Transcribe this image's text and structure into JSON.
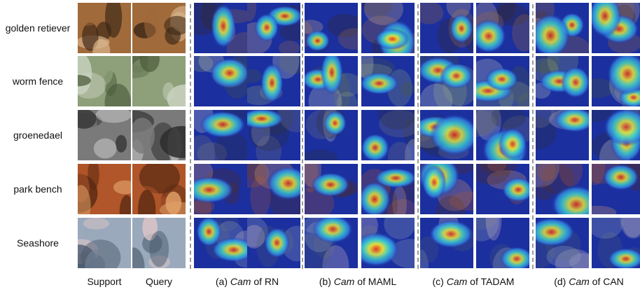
{
  "rows": [
    {
      "label": "golden retiever",
      "palette": [
        "#3b2616",
        "#a06a3a",
        "#d9b58c"
      ]
    },
    {
      "label": "worm fence",
      "palette": [
        "#4a5a3a",
        "#8da07a",
        "#c9d2c0"
      ]
    },
    {
      "label": "groenedael",
      "palette": [
        "#2e2e2e",
        "#7a7a7a",
        "#d0d0d0"
      ]
    },
    {
      "label": "park bench",
      "palette": [
        "#5a2a12",
        "#b0562a",
        "#e3a36a"
      ]
    },
    {
      "label": "Seashore",
      "palette": [
        "#4b5a6e",
        "#9aa9bb",
        "#e3c9c9"
      ]
    }
  ],
  "captions": {
    "support": "Support",
    "query": "Query",
    "groups": [
      {
        "prefix": "(a) ",
        "cam": "Cam",
        "suffix": " of RN"
      },
      {
        "prefix": "(b) ",
        "cam": "Cam",
        "suffix": " of MAML"
      },
      {
        "prefix": "(c) ",
        "cam": "Cam",
        "suffix": " of TADAM"
      },
      {
        "prefix": "(d) ",
        "cam": "Cam",
        "suffix": " of CAN"
      }
    ]
  },
  "heatmap_colors": {
    "background": "#1b2f9e",
    "cool": "#2f7fe0",
    "mid": "#3fd0c8",
    "warm": "#e6e23a",
    "hot": "#e5261c"
  }
}
